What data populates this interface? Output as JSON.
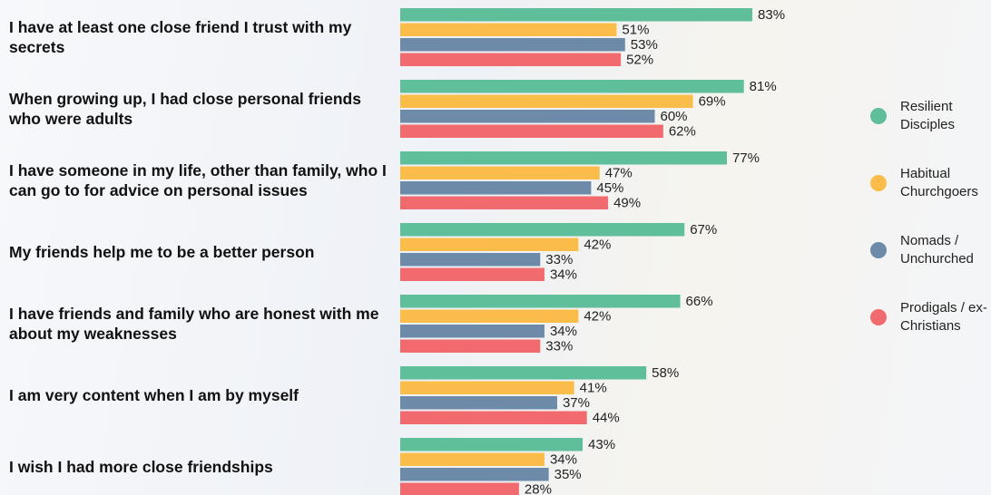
{
  "chart_data": {
    "type": "bar",
    "orientation": "horizontal",
    "categories": [
      "I have at least one close friend I trust with my secrets",
      "When growing up, I had close personal friends who were adults",
      "I have someone in my life, other than family, who I can go to for advice on personal issues",
      "My friends help me to be a better person",
      "I have friends and family who are honest with me about my weaknesses",
      "I am very content when I am by myself",
      "I wish I had more close friendships"
    ],
    "series": [
      {
        "name": "Resilient Disciples",
        "color": "#5fbf9b",
        "values": [
          83,
          81,
          77,
          67,
          66,
          58,
          43
        ],
        "value_labels": [
          "83%",
          "81%",
          "77%",
          "67%",
          "66%",
          "58%",
          "43%"
        ]
      },
      {
        "name": "Habitual Churchgoers",
        "color": "#fbbd49",
        "values": [
          51,
          69,
          47,
          42,
          42,
          41,
          34
        ],
        "value_labels": [
          "51%",
          "69%",
          "47%",
          "42%",
          "42%",
          "41%",
          "34%"
        ]
      },
      {
        "name": "Nomads / Unchurched",
        "color": "#6e8aa9",
        "values": [
          53,
          60,
          45,
          33,
          34,
          37,
          35
        ],
        "value_labels": [
          "53%",
          "60%",
          "45%",
          "33%",
          "34%",
          "37%",
          "35%"
        ]
      },
      {
        "name": "Prodigals / ex-Christians",
        "color": "#f16a6e",
        "values": [
          52,
          62,
          49,
          34,
          33,
          44,
          28
        ],
        "value_labels": [
          "52%",
          "62%",
          "49%",
          "34%",
          "33%",
          "44%",
          "28%"
        ]
      }
    ],
    "legend": "right"
  }
}
